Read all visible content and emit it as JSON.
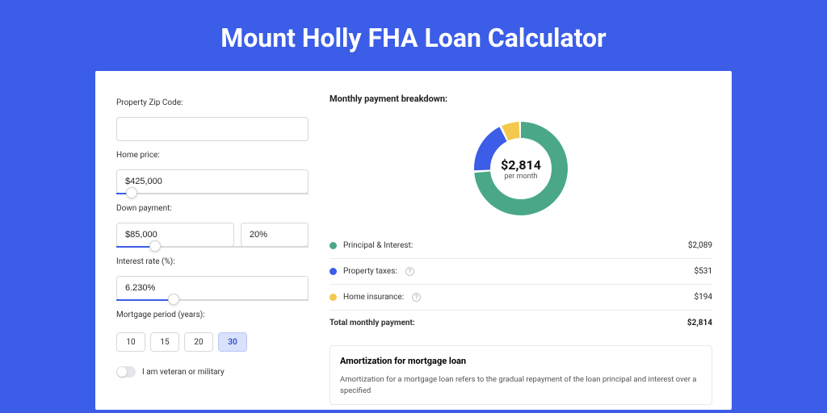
{
  "title": "Mount Holly FHA Loan Calculator",
  "colors": {
    "page_bg": "#3b5de7",
    "card_bg": "#ffffff",
    "series_pi": "#4aa889",
    "series_tax": "#3b5de7",
    "series_ins": "#f3c84e",
    "border": "#d6d8dc"
  },
  "form": {
    "zip": {
      "label": "Property Zip Code:",
      "value": ""
    },
    "home_price": {
      "label": "Home price:",
      "value": "$425,000",
      "slider_pct": 8
    },
    "down_payment": {
      "label": "Down payment:",
      "value": "$85,000",
      "pct_value": "20%",
      "slider_pct": 20
    },
    "interest_rate": {
      "label": "Interest rate (%):",
      "value": "6.230%",
      "slider_pct": 30
    },
    "period": {
      "label": "Mortgage period (years):",
      "options": [
        "10",
        "15",
        "20",
        "30"
      ],
      "selected_index": 3
    },
    "veteran": {
      "label": "I am veteran or military",
      "on": false
    }
  },
  "breakdown": {
    "title": "Monthly payment breakdown:",
    "center_amount": "$2,814",
    "center_sub": "per month",
    "items": [
      {
        "key": "pi",
        "label": "Principal & Interest:",
        "value": "$2,089",
        "num": 2089,
        "color": "#4aa889",
        "has_info": false
      },
      {
        "key": "tax",
        "label": "Property taxes:",
        "value": "$531",
        "num": 531,
        "color": "#3b5de7",
        "has_info": true
      },
      {
        "key": "ins",
        "label": "Home insurance:",
        "value": "$194",
        "num": 194,
        "color": "#f3c84e",
        "has_info": true
      }
    ],
    "total": {
      "label": "Total monthly payment:",
      "value": "$2,814",
      "num": 2814
    },
    "donut": {
      "radius": 48,
      "stroke_width": 20,
      "gap_deg": 3
    }
  },
  "amortization": {
    "title": "Amortization for mortgage loan",
    "text": "Amortization for a mortgage loan refers to the gradual repayment of the loan principal and interest over a specified"
  }
}
